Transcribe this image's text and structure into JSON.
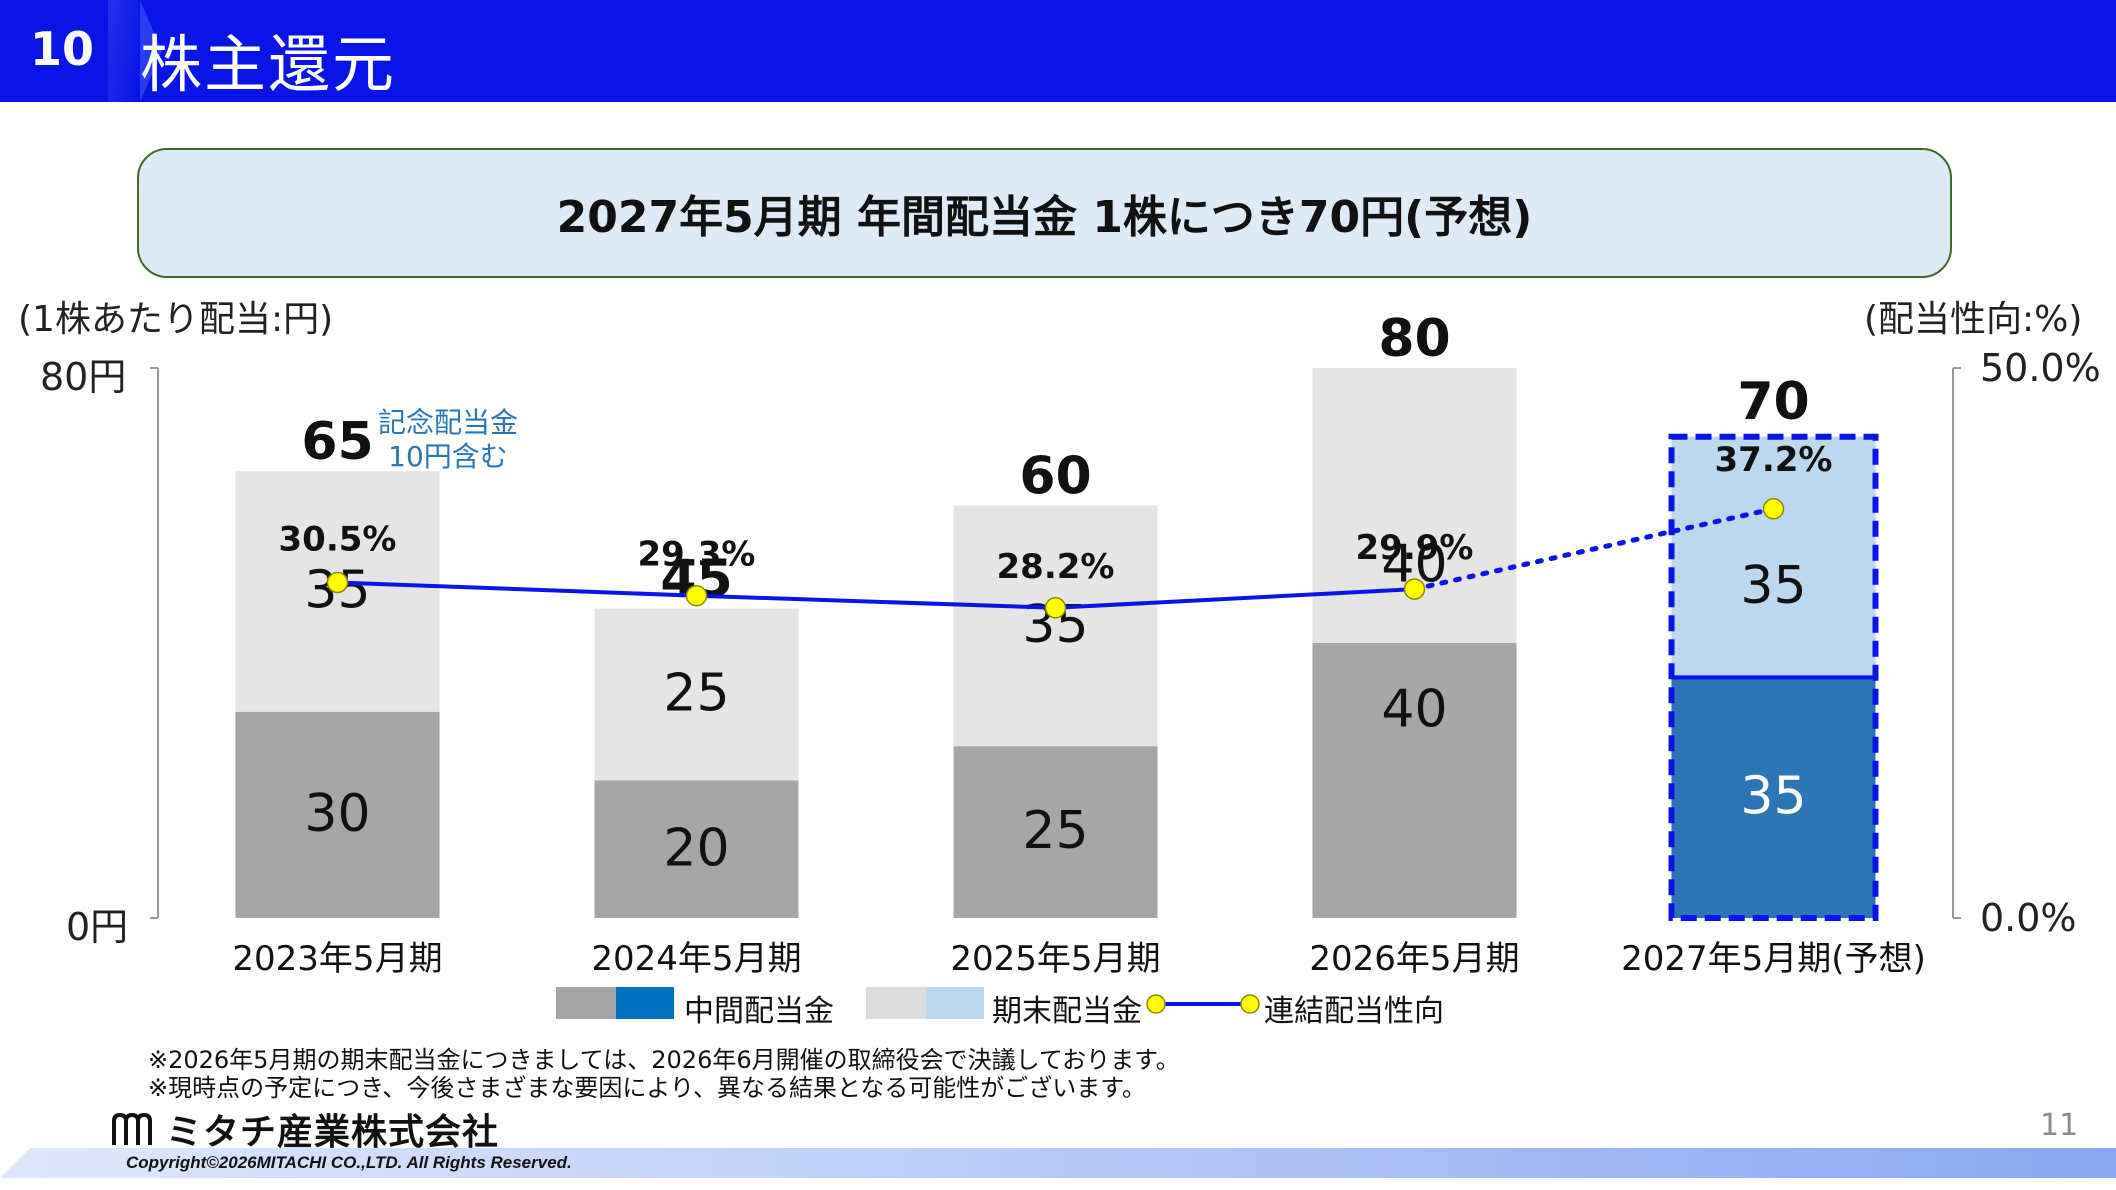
{
  "header": {
    "section_number": "10",
    "title": "株主還元"
  },
  "banner": {
    "text": "2027年5月期 年間配当金 1株につき70円(予想)"
  },
  "chart_data": {
    "type": "bar",
    "stacked": true,
    "left_axis_unit": "(1株あたり配当:円)",
    "right_axis_unit": "(配当性向:%)",
    "left_ticks": [
      "80円",
      "0円"
    ],
    "right_ticks": [
      "50.0%",
      "0.0%"
    ],
    "ylim": [
      0,
      80
    ],
    "y2lim": [
      0,
      50
    ],
    "categories": [
      "2023年5月期",
      "2024年5月期",
      "2025年5月期",
      "2026年5月期",
      "2027年5月期(予想)"
    ],
    "series": [
      {
        "name": "中間配当金",
        "values": [
          30,
          20,
          25,
          40,
          35
        ],
        "colors": [
          "#a6a6a6",
          "#a6a6a6",
          "#a6a6a6",
          "#a6a6a6",
          "#2e75b6"
        ]
      },
      {
        "name": "期末配当金",
        "values": [
          35,
          25,
          35,
          40,
          35
        ],
        "colors": [
          "#e5e5e5",
          "#e5e5e5",
          "#e5e5e5",
          "#e5e5e5",
          "#bdd7ee"
        ]
      }
    ],
    "totals": [
      "65",
      "45",
      "60",
      "80",
      "70"
    ],
    "line_series": {
      "name": "連結配当性向",
      "values": [
        30.5,
        29.3,
        28.2,
        29.9,
        37.2
      ],
      "labels": [
        "30.5%",
        "29.3%",
        "28.2%",
        "29.9%",
        "37.2%"
      ],
      "forecast_from_index": 3,
      "color": "#0a14e6",
      "marker_color": "#ffff00"
    },
    "annotation": {
      "line1": "記念配当金",
      "line2": "10円含む",
      "color": "#2e75b6"
    },
    "forecast_highlight_color": "#0a14e6"
  },
  "legend": {
    "interim_label": "中間配当金",
    "interim_colors": [
      "#a6a6a6",
      "#0070c0"
    ],
    "final_label": "期末配当金",
    "final_colors": [
      "#dcdcdc",
      "#bdd7ee"
    ],
    "ratio_label": "連結配当性向"
  },
  "footnotes": [
    "※2026年5月期の期末配当金につきましては、2026年6月開催の取締役会で決議しております。",
    "※現時点の予定につき、今後さまざまな要因により、異なる結果となる可能性がございます。"
  ],
  "footer": {
    "company_name": "ミタチ産業株式会社",
    "copyright": "Copyright©2026MITACHI CO.,LTD. All Rights Reserved.",
    "page_number": "11"
  }
}
